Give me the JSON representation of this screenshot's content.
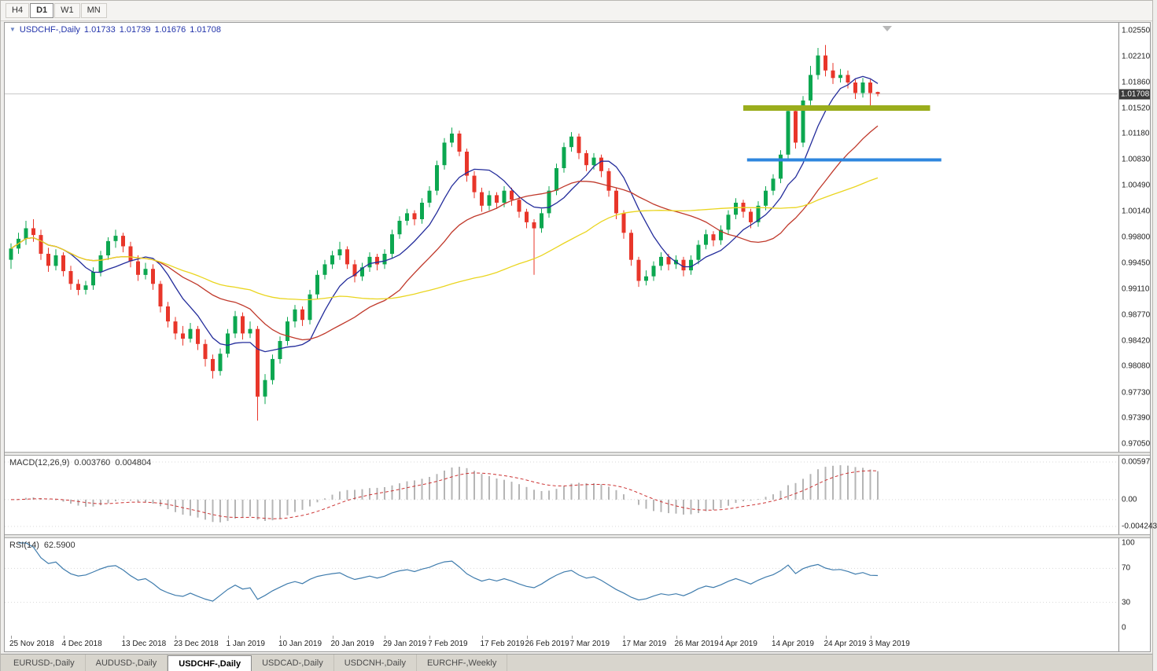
{
  "toolbar": {
    "timeframes": [
      {
        "label": "H4",
        "active": false
      },
      {
        "label": "D1",
        "active": true
      },
      {
        "label": "W1",
        "active": false
      },
      {
        "label": "MN",
        "active": false
      }
    ]
  },
  "chart": {
    "header": {
      "symbol": "USDCHF-,Daily",
      "open": "1.01733",
      "high": "1.01739",
      "low": "1.01676",
      "close": "1.01708"
    },
    "price_axis": {
      "current_price": "1.01708",
      "ticks": [
        {
          "text": "1.02550",
          "value": 1.0255
        },
        {
          "text": "1.02210",
          "value": 1.0221
        },
        {
          "text": "1.01860",
          "value": 1.0186
        },
        {
          "text": "1.01520",
          "value": 1.0152
        },
        {
          "text": "1.01180",
          "value": 1.0118
        },
        {
          "text": "1.00830",
          "value": 1.0083
        },
        {
          "text": "1.00490",
          "value": 1.0049
        },
        {
          "text": "1.00140",
          "value": 1.0014
        },
        {
          "text": "0.99800",
          "value": 0.998
        },
        {
          "text": "0.99450",
          "value": 0.9945
        },
        {
          "text": "0.99110",
          "value": 0.9911
        },
        {
          "text": "0.98770",
          "value": 0.9877
        },
        {
          "text": "0.98420",
          "value": 0.9842
        },
        {
          "text": "0.98080",
          "value": 0.9808
        },
        {
          "text": "0.97730",
          "value": 0.9773
        },
        {
          "text": "0.97390",
          "value": 0.9739
        },
        {
          "text": "0.97050",
          "value": 0.9705
        }
      ]
    },
    "colors": {
      "up_candle": "#0ca750",
      "down_candle": "#e8362a",
      "macd_histogram": "#b5b5b5",
      "macd_signal": "#cc3333",
      "rsi_line": "#3f7cad",
      "bid_line": "#c9c9c9",
      "grid_dotted": "#d8d8d8",
      "price_badge_bg": "#3b3b3b"
    }
  },
  "macd": {
    "label": "MACD(12,26,9)",
    "value": "0.003760",
    "signal_value": "0.004804",
    "params": [
      12,
      26,
      9
    ],
    "ticks": [
      {
        "text": "0.00597",
        "value": 0.00597
      },
      {
        "text": "0.00",
        "value": 0
      },
      {
        "text": "-0.004243",
        "value": -0.004243
      }
    ]
  },
  "rsi": {
    "label": "RSI(14)",
    "value": "62.5900",
    "period": 14,
    "levels": [
      70,
      30
    ],
    "ticks": [
      {
        "text": "100",
        "value": 100
      },
      {
        "text": "70",
        "value": 70
      },
      {
        "text": "30",
        "value": 30
      },
      {
        "text": "0",
        "value": 0
      }
    ]
  },
  "bottom_tabs": [
    {
      "label": "EURUSD-,Daily",
      "active": false
    },
    {
      "label": "AUDUSD-,Daily",
      "active": false
    },
    {
      "label": "USDCHF-,Daily",
      "active": true
    },
    {
      "label": "USDCAD-,Daily",
      "active": false
    },
    {
      "label": "USDCNH-,Daily",
      "active": false
    },
    {
      "label": "EURCHF-,Weekly",
      "active": false
    }
  ],
  "chart_data": {
    "type": "candlestick",
    "title": "USDCHF-,Daily",
    "symbol": "USDCHF",
    "timeframe": "Daily",
    "last_ohlc": {
      "open": 1.01733,
      "high": 1.01739,
      "low": 1.01676,
      "close": 1.01708
    },
    "y_range": [
      0.9705,
      1.0255
    ],
    "x_axis_labels": [
      {
        "text": "25 Nov 2018",
        "index": 0
      },
      {
        "text": "4 Dec 2018",
        "index": 7
      },
      {
        "text": "13 Dec 2018",
        "index": 15
      },
      {
        "text": "23 Dec 2018",
        "index": 22
      },
      {
        "text": "1 Jan 2019",
        "index": 29
      },
      {
        "text": "10 Jan 2019",
        "index": 36
      },
      {
        "text": "20 Jan 2019",
        "index": 43
      },
      {
        "text": "29 Jan 2019",
        "index": 50
      },
      {
        "text": "7 Feb 2019",
        "index": 56
      },
      {
        "text": "17 Feb 2019",
        "index": 63
      },
      {
        "text": "26 Feb 2019",
        "index": 69
      },
      {
        "text": "7 Mar 2019",
        "index": 75
      },
      {
        "text": "17 Mar 2019",
        "index": 82
      },
      {
        "text": "26 Mar 2019",
        "index": 89
      },
      {
        "text": "4 Apr 2019",
        "index": 95
      },
      {
        "text": "14 Apr 2019",
        "index": 102
      },
      {
        "text": "24 Apr 2019",
        "index": 109
      },
      {
        "text": "3 May 2019",
        "index": 115
      }
    ],
    "moving_averages": [
      {
        "name": "ma-fast",
        "type": "sma",
        "period": 8,
        "color": "#232c9b"
      },
      {
        "name": "ma-medium",
        "type": "sma",
        "period": 20,
        "color": "#c0392b"
      },
      {
        "name": "ma-slow",
        "type": "sma",
        "period": 45,
        "color": "#ead51f"
      }
    ],
    "overlays": [
      {
        "name": "resistance-line",
        "type": "hline-segment",
        "price": 1.0152,
        "start_index": 98,
        "end_index": 123,
        "color": "#9aad1c",
        "width": 7
      },
      {
        "name": "support-line",
        "type": "hline-segment",
        "price": 1.0083,
        "start_index": 98.5,
        "end_index": 124.5,
        "color": "#2e86de",
        "width": 4
      }
    ],
    "indicators": [
      {
        "name": "MACD",
        "params": [
          12,
          26,
          9
        ],
        "current_values": [
          0.00376,
          0.004804
        ]
      },
      {
        "name": "RSI",
        "params": [
          14
        ],
        "current_value": 62.59
      }
    ],
    "ohlc": [
      [
        0.995,
        0.9972,
        0.9938,
        0.9965
      ],
      [
        0.9965,
        0.9986,
        0.9958,
        0.9978
      ],
      [
        0.9978,
        1.0002,
        0.997,
        0.9992
      ],
      [
        0.9992,
        1.0004,
        0.9974,
        0.9983
      ],
      [
        0.9983,
        0.999,
        0.995,
        0.9958
      ],
      [
        0.9958,
        0.9966,
        0.9934,
        0.9942
      ],
      [
        0.9942,
        0.9964,
        0.9936,
        0.9956
      ],
      [
        0.9956,
        0.996,
        0.9928,
        0.9935
      ],
      [
        0.9935,
        0.9942,
        0.991,
        0.9918
      ],
      [
        0.9918,
        0.9924,
        0.9903,
        0.991
      ],
      [
        0.991,
        0.9922,
        0.9904,
        0.9916
      ],
      [
        0.9916,
        0.994,
        0.991,
        0.9934
      ],
      [
        0.9934,
        0.9962,
        0.9928,
        0.9956
      ],
      [
        0.9956,
        0.998,
        0.995,
        0.9975
      ],
      [
        0.9975,
        0.999,
        0.9966,
        0.9982
      ],
      [
        0.9982,
        0.9986,
        0.996,
        0.9968
      ],
      [
        0.9968,
        0.9974,
        0.994,
        0.9948
      ],
      [
        0.9948,
        0.9956,
        0.9922,
        0.993
      ],
      [
        0.993,
        0.9946,
        0.9924,
        0.9938
      ],
      [
        0.9938,
        0.9944,
        0.991,
        0.9918
      ],
      [
        0.9918,
        0.9922,
        0.988,
        0.9888
      ],
      [
        0.9888,
        0.9894,
        0.986,
        0.9868
      ],
      [
        0.9868,
        0.9874,
        0.9844,
        0.9852
      ],
      [
        0.9852,
        0.9862,
        0.9836,
        0.9845
      ],
      [
        0.9845,
        0.9866,
        0.984,
        0.9858
      ],
      [
        0.9858,
        0.9862,
        0.983,
        0.9838
      ],
      [
        0.9838,
        0.9844,
        0.9808,
        0.9818
      ],
      [
        0.9818,
        0.9824,
        0.9792,
        0.9802
      ],
      [
        0.9802,
        0.9832,
        0.9796,
        0.9825
      ],
      [
        0.9825,
        0.9858,
        0.982,
        0.9852
      ],
      [
        0.9852,
        0.9882,
        0.9846,
        0.9875
      ],
      [
        0.9875,
        0.988,
        0.9844,
        0.9852
      ],
      [
        0.9852,
        0.9868,
        0.9846,
        0.9858
      ],
      [
        0.9858,
        0.9862,
        0.9736,
        0.9768
      ],
      [
        0.9768,
        0.9798,
        0.9758,
        0.979
      ],
      [
        0.979,
        0.9824,
        0.9784,
        0.9818
      ],
      [
        0.9818,
        0.9848,
        0.9812,
        0.9842
      ],
      [
        0.9842,
        0.9874,
        0.9836,
        0.9868
      ],
      [
        0.9868,
        0.989,
        0.986,
        0.9884
      ],
      [
        0.9884,
        0.9888,
        0.9862,
        0.987
      ],
      [
        0.987,
        0.991,
        0.9864,
        0.9904
      ],
      [
        0.9904,
        0.9936,
        0.9898,
        0.993
      ],
      [
        0.993,
        0.995,
        0.9924,
        0.9944
      ],
      [
        0.9944,
        0.9962,
        0.9938,
        0.9956
      ],
      [
        0.9956,
        0.9974,
        0.995,
        0.9964
      ],
      [
        0.9964,
        0.9968,
        0.9938,
        0.9944
      ],
      [
        0.9944,
        0.995,
        0.992,
        0.9928
      ],
      [
        0.9928,
        0.9946,
        0.9922,
        0.994
      ],
      [
        0.994,
        0.996,
        0.9934,
        0.9954
      ],
      [
        0.9954,
        0.9958,
        0.9936,
        0.9944
      ],
      [
        0.9944,
        0.9964,
        0.9938,
        0.9958
      ],
      [
        0.9958,
        0.999,
        0.9952,
        0.9984
      ],
      [
        0.9984,
        1.0008,
        0.9978,
        1.0002
      ],
      [
        1.0002,
        1.0018,
        0.9996,
        1.0012
      ],
      [
        1.0012,
        1.0016,
        0.9996,
        1.0004
      ],
      [
        1.0004,
        1.0032,
        0.9998,
        1.0026
      ],
      [
        1.0026,
        1.0048,
        1.002,
        1.0042
      ],
      [
        1.0042,
        1.0082,
        1.0036,
        1.0076
      ],
      [
        1.0076,
        1.0112,
        1.007,
        1.0106
      ],
      [
        1.0106,
        1.0126,
        1.01,
        1.0118
      ],
      [
        1.0118,
        1.0122,
        1.0088,
        1.0094
      ],
      [
        1.0094,
        1.0098,
        1.0054,
        1.0062
      ],
      [
        1.0062,
        1.0068,
        1.0032,
        1.004
      ],
      [
        1.004,
        1.0046,
        1.0014,
        1.0022
      ],
      [
        1.0022,
        1.0042,
        1.0016,
        1.0036
      ],
      [
        1.0036,
        1.004,
        1.0018,
        1.0026
      ],
      [
        1.0026,
        1.0048,
        1.002,
        1.0042
      ],
      [
        1.0042,
        1.0046,
        1.0022,
        1.003
      ],
      [
        1.003,
        1.0034,
        1.0006,
        1.0014
      ],
      [
        1.0014,
        1.0018,
        0.9992,
        1.0
      ],
      [
        1.0,
        1.0004,
        0.993,
        0.9992
      ],
      [
        0.9992,
        1.0018,
        0.9986,
        1.0012
      ],
      [
        1.0012,
        1.0048,
        1.0006,
        1.0042
      ],
      [
        1.0042,
        1.0078,
        1.0036,
        1.0072
      ],
      [
        1.0072,
        1.0106,
        1.0066,
        1.01
      ],
      [
        1.01,
        1.012,
        1.0094,
        1.0114
      ],
      [
        1.0114,
        1.0118,
        1.0084,
        1.0092
      ],
      [
        1.0092,
        1.0096,
        1.0068,
        1.0076
      ],
      [
        1.0076,
        1.0092,
        1.007,
        1.0086
      ],
      [
        1.0086,
        1.009,
        1.006,
        1.0068
      ],
      [
        1.0068,
        1.0072,
        1.0034,
        1.0042
      ],
      [
        1.0042,
        1.0046,
        1.0004,
        1.0012
      ],
      [
        1.0012,
        1.0016,
        0.9978,
        0.9986
      ],
      [
        0.9986,
        0.999,
        0.9942,
        0.995
      ],
      [
        0.995,
        0.9954,
        0.9914,
        0.9922
      ],
      [
        0.9922,
        0.9936,
        0.9916,
        0.9928
      ],
      [
        0.9928,
        0.9948,
        0.9922,
        0.9942
      ],
      [
        0.9942,
        0.996,
        0.9936,
        0.9954
      ],
      [
        0.9954,
        0.9958,
        0.9936,
        0.9944
      ],
      [
        0.9944,
        0.9956,
        0.9938,
        0.995
      ],
      [
        0.995,
        0.9954,
        0.9928,
        0.9936
      ],
      [
        0.9936,
        0.9956,
        0.993,
        0.995
      ],
      [
        0.995,
        0.9976,
        0.9944,
        0.997
      ],
      [
        0.997,
        0.999,
        0.9964,
        0.9984
      ],
      [
        0.9984,
        0.9988,
        0.9968,
        0.9976
      ],
      [
        0.9976,
        0.9996,
        0.997,
        0.999
      ],
      [
        0.999,
        1.0016,
        0.9984,
        1.001
      ],
      [
        1.001,
        1.0032,
        1.0004,
        1.0026
      ],
      [
        1.0026,
        1.003,
        1.0006,
        1.0014
      ],
      [
        1.0014,
        1.0018,
        0.9992,
        1.0
      ],
      [
        1.0,
        1.0028,
        0.9994,
        1.0022
      ],
      [
        1.0022,
        1.0048,
        1.0016,
        1.0042
      ],
      [
        1.0042,
        1.0064,
        1.0036,
        1.0058
      ],
      [
        1.0058,
        1.0096,
        1.0052,
        1.009
      ],
      [
        1.009,
        1.0154,
        1.0084,
        1.0148
      ],
      [
        1.0148,
        1.0152,
        1.0098,
        1.0106
      ],
      [
        1.0106,
        1.0168,
        1.01,
        1.0162
      ],
      [
        1.0162,
        1.0208,
        1.0156,
        1.0196
      ],
      [
        1.0196,
        1.0232,
        1.019,
        1.0222
      ],
      [
        1.0222,
        1.0236,
        1.0194,
        1.0202
      ],
      [
        1.0202,
        1.0212,
        1.0184,
        1.0192
      ],
      [
        1.0192,
        1.0204,
        1.0186,
        1.0196
      ],
      [
        1.0196,
        1.0202,
        1.0178,
        1.0186
      ],
      [
        1.0186,
        1.019,
        1.0164,
        1.0172
      ],
      [
        1.0172,
        1.0192,
        1.0166,
        1.0186
      ],
      [
        1.0186,
        1.019,
        1.0152,
        1.0172
      ],
      [
        1.01733,
        1.01739,
        1.01676,
        1.01708
      ]
    ]
  }
}
